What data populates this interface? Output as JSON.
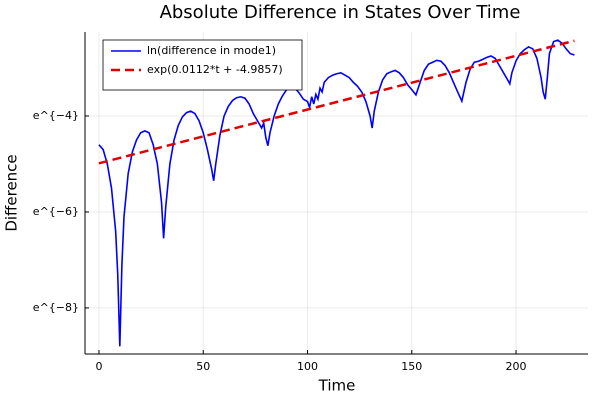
{
  "chart_data": {
    "type": "line",
    "title": "Absolute Difference in States Over Time",
    "x_label": "Time",
    "y_label": "Difference",
    "xlim": [
      -6.7,
      234.5
    ],
    "xticks": [
      0,
      50,
      100,
      150,
      200
    ],
    "ylim": [
      -8.96,
      -2.25
    ],
    "yticks": [
      {
        "value": -8,
        "label": "e^{−8}"
      },
      {
        "value": -6,
        "label": "e^{−6}"
      },
      {
        "value": -4,
        "label": "e^{−4}"
      }
    ],
    "grid": true,
    "legend": "top-left",
    "series": [
      {
        "name": "ln(difference in mode1)",
        "color": "#0000ff",
        "dash": false,
        "x": [
          0,
          2,
          4,
          6,
          8,
          9,
          10,
          11,
          12,
          14,
          16,
          18,
          20,
          22,
          24,
          26,
          28,
          30,
          31,
          32,
          34,
          36,
          38,
          40,
          42,
          44,
          46,
          48,
          50,
          52,
          54,
          55,
          56,
          58,
          60,
          62,
          64,
          66,
          68,
          70,
          72,
          74,
          76,
          78,
          79,
          80,
          81,
          82,
          84,
          86,
          88,
          90,
          92,
          94,
          96,
          98,
          100,
          101,
          102,
          103,
          104,
          105,
          106,
          107,
          108,
          110,
          112,
          114,
          116,
          118,
          120,
          122,
          124,
          126,
          128,
          129,
          130,
          131,
          132,
          134,
          136,
          138,
          140,
          142,
          144,
          146,
          148,
          150,
          152,
          154,
          156,
          158,
          160,
          162,
          164,
          166,
          168,
          170,
          172,
          174,
          176,
          178,
          180,
          182,
          184,
          186,
          188,
          190,
          192,
          194,
          196,
          197,
          198,
          200,
          202,
          204,
          206,
          208,
          210,
          212,
          213,
          214,
          215,
          216,
          218,
          220,
          222,
          224,
          226,
          228
        ],
        "values": [
          -4.6,
          -4.7,
          -5.0,
          -5.5,
          -6.4,
          -7.3,
          -8.8,
          -7.1,
          -6.1,
          -5.2,
          -4.75,
          -4.5,
          -4.35,
          -4.31,
          -4.35,
          -4.6,
          -5.0,
          -5.8,
          -6.55,
          -5.9,
          -5.0,
          -4.5,
          -4.2,
          -4.02,
          -3.93,
          -3.9,
          -3.95,
          -4.1,
          -4.35,
          -4.7,
          -5.1,
          -5.35,
          -5.0,
          -4.4,
          -4.0,
          -3.8,
          -3.68,
          -3.62,
          -3.6,
          -3.63,
          -3.75,
          -3.95,
          -4.1,
          -4.25,
          -4.15,
          -4.45,
          -4.62,
          -4.35,
          -4.0,
          -3.75,
          -3.58,
          -3.45,
          -3.4,
          -3.42,
          -3.52,
          -3.65,
          -3.7,
          -3.82,
          -3.6,
          -3.75,
          -3.55,
          -3.65,
          -3.42,
          -3.5,
          -3.3,
          -3.2,
          -3.15,
          -3.12,
          -3.1,
          -3.15,
          -3.2,
          -3.3,
          -3.38,
          -3.5,
          -3.7,
          -3.85,
          -4.0,
          -4.25,
          -3.9,
          -3.5,
          -3.25,
          -3.12,
          -3.08,
          -3.05,
          -3.1,
          -3.2,
          -3.35,
          -3.45,
          -3.56,
          -3.3,
          -3.05,
          -2.92,
          -2.88,
          -2.84,
          -2.86,
          -2.95,
          -3.1,
          -3.3,
          -3.5,
          -3.69,
          -3.3,
          -3.02,
          -2.88,
          -2.86,
          -2.82,
          -2.78,
          -2.75,
          -2.8,
          -2.95,
          -3.1,
          -3.25,
          -3.33,
          -3.1,
          -2.85,
          -2.7,
          -2.62,
          -2.56,
          -2.6,
          -2.8,
          -3.2,
          -3.5,
          -3.65,
          -3.2,
          -2.7,
          -2.45,
          -2.42,
          -2.48,
          -2.6,
          -2.7,
          -2.73
        ]
      },
      {
        "name": "exp(0.0112*t + -4.9857)",
        "color": "#e00000",
        "dash": true,
        "x": [
          0,
          228
        ],
        "values": [
          -4.9857,
          -2.4321
        ]
      }
    ]
  }
}
